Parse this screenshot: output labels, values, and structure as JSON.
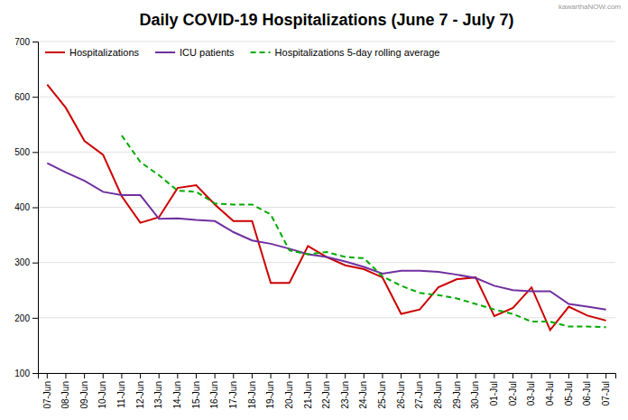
{
  "chart_data": {
    "type": "line",
    "title": "Daily COVID-19 Hospitalizations (June 7 - July 7)",
    "annotations": [
      "kawarthaNOW.com"
    ],
    "categories": [
      "07-Jun",
      "08-Jun",
      "09-Jun",
      "10-Jun",
      "11-Jun",
      "12-Jun",
      "13-Jun",
      "14-Jun",
      "15-Jun",
      "16-Jun",
      "17-Jun",
      "18-Jun",
      "19-Jun",
      "20-Jun",
      "21-Jun",
      "22-Jun",
      "23-Jun",
      "24-Jun",
      "25-Jun",
      "26-Jun",
      "27-Jun",
      "28-Jun",
      "29-Jun",
      "30-Jun",
      "01-Jul",
      "02-Jul",
      "03-Jul",
      "04-Jul",
      "05-Jul",
      "06-Jul",
      "07-Jul"
    ],
    "series": [
      {
        "name": "Hospitalizations",
        "color": "#cc0000",
        "line_style": "solid",
        "values": [
          622,
          580,
          520,
          495,
          420,
          372,
          382,
          435,
          440,
          405,
          375,
          375,
          263,
          263,
          330,
          310,
          295,
          288,
          273,
          207,
          215,
          255,
          270,
          273,
          203,
          218,
          255,
          178,
          220,
          204,
          195
        ]
      },
      {
        "name": "ICU patients",
        "color": "#7030a0",
        "line_style": "solid",
        "values": [
          480,
          463,
          448,
          428,
          422,
          422,
          379,
          380,
          377,
          375,
          355,
          340,
          334,
          325,
          315,
          310,
          302,
          292,
          280,
          285,
          285,
          283,
          278,
          272,
          258,
          250,
          248,
          248,
          225,
          220,
          215
        ]
      },
      {
        "name": "Hospitalizations 5-day rolling average",
        "color": "#00aa00",
        "line_style": "dashed",
        "values": [
          null,
          null,
          null,
          null,
          530,
          482,
          458,
          430,
          428,
          407,
          405,
          405,
          387,
          322,
          315,
          319,
          310,
          308,
          275,
          258,
          245,
          241,
          235,
          225,
          215,
          207,
          193,
          193,
          184,
          184,
          183
        ]
      }
    ],
    "ylim": [
      100,
      700
    ],
    "yticks": [
      100,
      200,
      300,
      400,
      500,
      600,
      700
    ],
    "grid": true,
    "legend": "top-left"
  }
}
